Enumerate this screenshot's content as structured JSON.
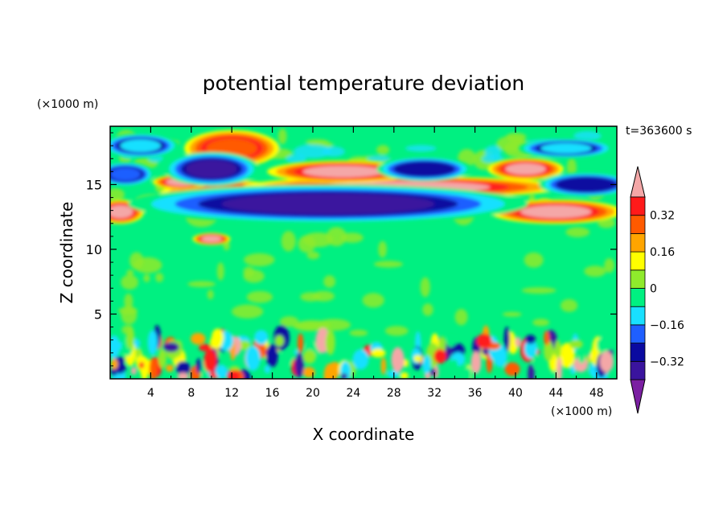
{
  "chart_data": {
    "type": "heatmap",
    "title": "potential temperature deviation",
    "xlabel": "X coordinate",
    "ylabel": "Z coordinate",
    "x_unit": "(×1000 m)",
    "y_unit": "(×1000 m)",
    "time_label": "t=363600 s",
    "xlim": [
      0,
      50
    ],
    "ylim": [
      0,
      19.5
    ],
    "x_ticks": [
      "4",
      "8",
      "12",
      "16",
      "20",
      "24",
      "28",
      "32",
      "36",
      "40",
      "44",
      "48"
    ],
    "y_ticks": [
      "5",
      "10",
      "15"
    ],
    "colorbar": {
      "levels": [
        -0.4,
        -0.32,
        -0.24,
        -0.16,
        -0.08,
        0,
        0.08,
        0.16,
        0.24,
        0.32,
        0.4
      ],
      "labels": [
        "-0.32",
        "-0.16",
        "0",
        "0.16",
        "0.32"
      ],
      "label_values": [
        -0.32,
        -0.16,
        0,
        0.16,
        0.32
      ],
      "colors": [
        "#7b1fa2",
        "#3a149e",
        "#0a0aa0",
        "#1f5fff",
        "#19e0ff",
        "#00f081",
        "#8fea2c",
        "#ffff00",
        "#ffa500",
        "#ff5a00",
        "#ff1a1a",
        "#f4a7a7"
      ],
      "extend": "both"
    },
    "features": [
      {
        "kind": "positive",
        "level": 0.4,
        "x": 11.5,
        "z": 14.3,
        "width": 7.0,
        "height": 1.1
      },
      {
        "kind": "positive",
        "level": 0.4,
        "x": 29.0,
        "z": 14.8,
        "width": 17.0,
        "height": 0.9
      },
      {
        "kind": "positive",
        "level": 0.4,
        "x": 44.0,
        "z": 12.9,
        "width": 7.0,
        "height": 1.0
      },
      {
        "kind": "positive",
        "level": 0.4,
        "x": 1.0,
        "z": 12.9,
        "width": 2.5,
        "height": 1.0
      },
      {
        "kind": "positive",
        "level": 0.4,
        "x": 7.0,
        "z": 15.2,
        "width": 3.0,
        "height": 0.6
      },
      {
        "kind": "positive",
        "level": 0.4,
        "x": 23.0,
        "z": 16.0,
        "width": 8.0,
        "height": 0.9
      },
      {
        "kind": "positive",
        "level": 0.4,
        "x": 41.0,
        "z": 16.2,
        "width": 4.0,
        "height": 0.9
      },
      {
        "kind": "positive",
        "level": 0.4,
        "x": 10.0,
        "z": 10.8,
        "width": 2.0,
        "height": 0.5
      },
      {
        "kind": "positive",
        "level": 0.24,
        "x": 12.0,
        "z": 17.8,
        "width": 5.0,
        "height": 1.5
      },
      {
        "kind": "negative",
        "level": -0.4,
        "x": 21.5,
        "z": 13.5,
        "width": 21.0,
        "height": 1.6
      },
      {
        "kind": "negative",
        "level": -0.4,
        "x": 10.0,
        "z": 16.2,
        "width": 5.0,
        "height": 1.4
      },
      {
        "kind": "negative",
        "level": -0.32,
        "x": 31.0,
        "z": 16.2,
        "width": 5.0,
        "height": 1.0
      },
      {
        "kind": "negative",
        "level": -0.32,
        "x": 47.0,
        "z": 15.0,
        "width": 5.0,
        "height": 1.0
      },
      {
        "kind": "negative",
        "level": -0.24,
        "x": 1.5,
        "z": 15.8,
        "width": 3.0,
        "height": 1.0
      },
      {
        "kind": "negative",
        "level": -0.16,
        "x": 3.0,
        "z": 18.0,
        "width": 4.0,
        "height": 1.0
      },
      {
        "kind": "negative",
        "level": -0.16,
        "x": 45.0,
        "z": 17.8,
        "width": 5.0,
        "height": 0.8
      }
    ]
  }
}
